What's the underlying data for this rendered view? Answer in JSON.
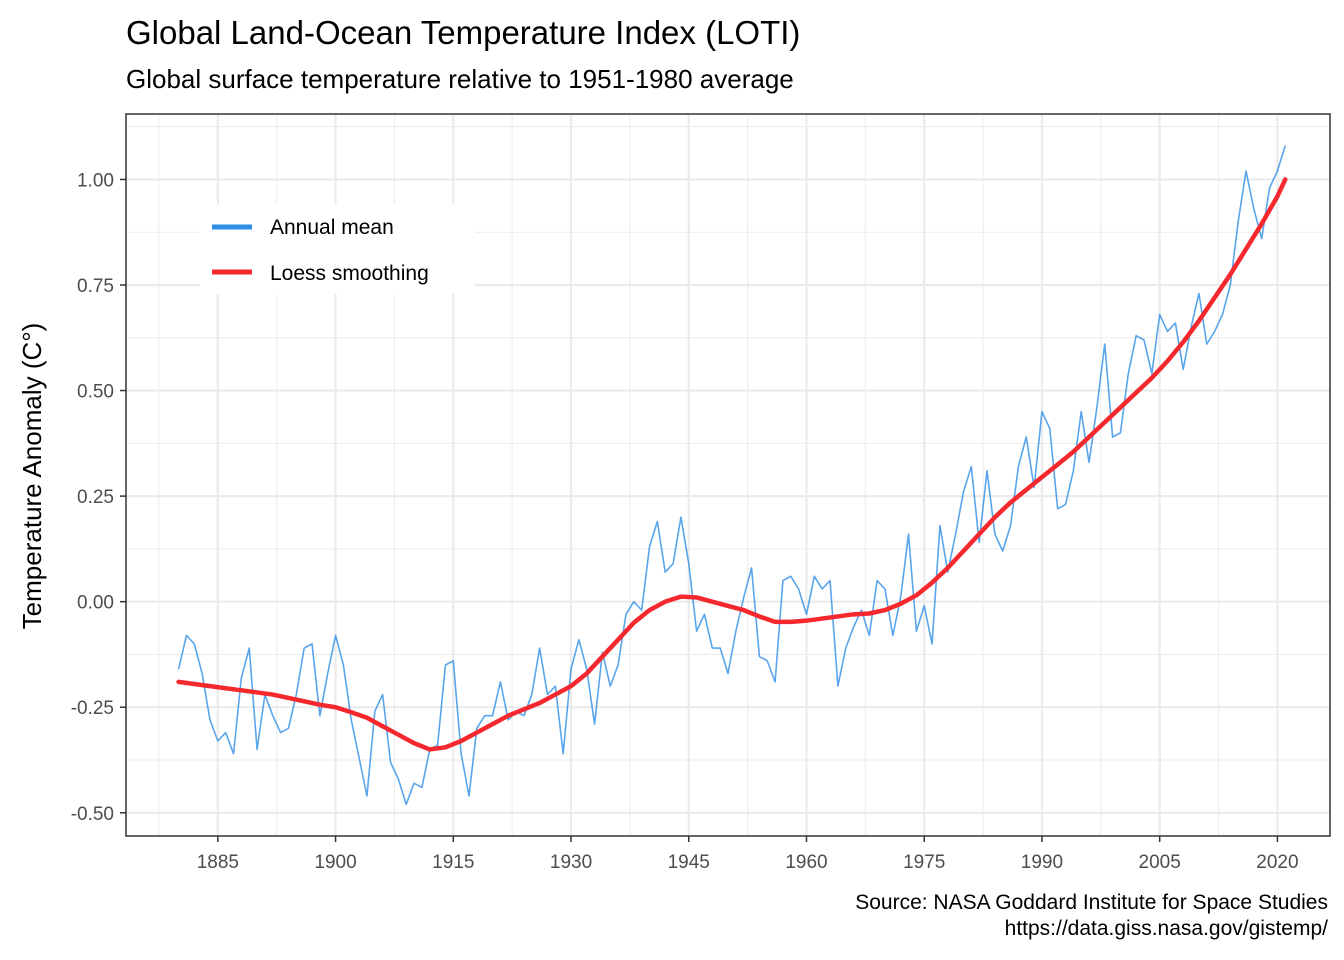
{
  "header": {
    "title": "Global Land-Ocean Temperature Index (LOTI)",
    "subtitle": "Global surface temperature relative to 1951-1980 average"
  },
  "caption": {
    "line1": "Source: NASA Goddard Institute for Space Studies",
    "line2": "https://data.giss.nasa.gov/gistemp/"
  },
  "colors": {
    "annual": "#2f8fe6",
    "smooth": "#f5282e",
    "grid": "#ebebeb",
    "panel_border": "#333333"
  },
  "chart_data": {
    "type": "line",
    "title": "Global Land-Ocean Temperature Index (LOTI)",
    "subtitle": "Global surface temperature relative to 1951-1980 average",
    "xlabel": "",
    "ylabel": "Temperature Anomaly (C°)",
    "xlim": [
      1873.3,
      1026.7
    ],
    "ylim": [
      -0.555,
      1.155
    ],
    "x_ticks": [
      1885,
      1900,
      1915,
      1930,
      1945,
      1960,
      1975,
      1990,
      2005,
      2020
    ],
    "x_tick_labels": [
      "1885",
      "1900",
      "1915",
      "1930",
      "1945",
      "1960",
      "1975",
      "1990",
      "2005",
      "2020"
    ],
    "y_ticks": [
      -0.5,
      -0.25,
      0,
      0.25,
      0.5,
      0.75,
      1.0
    ],
    "y_tick_labels": [
      "-0.50",
      "-0.25",
      "0.00",
      "0.25",
      "0.50",
      "0.75",
      "1.00"
    ],
    "grid": true,
    "legend_position": "top-left",
    "series": [
      {
        "name": "Annual mean",
        "x": [
          1880,
          1881,
          1882,
          1883,
          1884,
          1885,
          1886,
          1887,
          1888,
          1889,
          1890,
          1891,
          1892,
          1893,
          1894,
          1895,
          1896,
          1897,
          1898,
          1899,
          1900,
          1901,
          1902,
          1903,
          1904,
          1905,
          1906,
          1907,
          1908,
          1909,
          1910,
          1911,
          1912,
          1913,
          1914,
          1915,
          1916,
          1917,
          1918,
          1919,
          1920,
          1921,
          1922,
          1923,
          1924,
          1925,
          1926,
          1927,
          1928,
          1929,
          1930,
          1931,
          1932,
          1933,
          1934,
          1935,
          1936,
          1937,
          1938,
          1939,
          1940,
          1941,
          1942,
          1943,
          1944,
          1945,
          1946,
          1947,
          1948,
          1949,
          1950,
          1951,
          1952,
          1953,
          1954,
          1955,
          1956,
          1957,
          1958,
          1959,
          1960,
          1961,
          1962,
          1963,
          1964,
          1965,
          1966,
          1967,
          1968,
          1969,
          1970,
          1971,
          1972,
          1973,
          1974,
          1975,
          1976,
          1977,
          1978,
          1979,
          1980,
          1981,
          1982,
          1983,
          1984,
          1985,
          1986,
          1987,
          1988,
          1989,
          1990,
          1991,
          1992,
          1993,
          1994,
          1995,
          1996,
          1997,
          1998,
          1999,
          2000,
          2001,
          2002,
          2003,
          2004,
          2005,
          2006,
          2007,
          2008,
          2009,
          2010,
          2011,
          2012,
          2013,
          2014,
          2015,
          2016,
          2017,
          2018,
          2019,
          2020,
          2021
        ],
        "values": [
          -0.16,
          -0.08,
          -0.1,
          -0.17,
          -0.28,
          -0.33,
          -0.31,
          -0.36,
          -0.18,
          -0.11,
          -0.35,
          -0.22,
          -0.27,
          -0.31,
          -0.3,
          -0.22,
          -0.11,
          -0.1,
          -0.27,
          -0.17,
          -0.08,
          -0.15,
          -0.28,
          -0.37,
          -0.46,
          -0.26,
          -0.22,
          -0.38,
          -0.42,
          -0.48,
          -0.43,
          -0.44,
          -0.35,
          -0.34,
          -0.15,
          -0.14,
          -0.36,
          -0.46,
          -0.3,
          -0.27,
          -0.27,
          -0.19,
          -0.28,
          -0.26,
          -0.27,
          -0.22,
          -0.11,
          -0.22,
          -0.2,
          -0.36,
          -0.16,
          -0.09,
          -0.16,
          -0.29,
          -0.12,
          -0.2,
          -0.15,
          -0.03,
          0.0,
          -0.02,
          0.13,
          0.19,
          0.07,
          0.09,
          0.2,
          0.09,
          -0.07,
          -0.03,
          -0.11,
          -0.11,
          -0.17,
          -0.07,
          0.01,
          0.08,
          -0.13,
          -0.14,
          -0.19,
          0.05,
          0.06,
          0.03,
          -0.03,
          0.06,
          0.03,
          0.05,
          -0.2,
          -0.11,
          -0.06,
          -0.02,
          -0.08,
          0.05,
          0.03,
          -0.08,
          0.01,
          0.16,
          -0.07,
          -0.01,
          -0.1,
          0.18,
          0.07,
          0.16,
          0.26,
          0.32,
          0.14,
          0.31,
          0.16,
          0.12,
          0.18,
          0.32,
          0.39,
          0.27,
          0.45,
          0.41,
          0.22,
          0.23,
          0.31,
          0.45,
          0.33,
          0.46,
          0.61,
          0.39,
          0.4,
          0.54,
          0.63,
          0.62,
          0.54,
          0.68,
          0.64,
          0.66,
          0.55,
          0.65,
          0.73,
          0.61,
          0.64,
          0.68,
          0.75,
          0.9,
          1.02,
          0.93,
          0.86,
          0.98,
          1.02,
          1.08
        ]
      },
      {
        "name": "Loess smoothing",
        "x": [
          1880,
          1882,
          1884,
          1886,
          1888,
          1890,
          1892,
          1894,
          1896,
          1898,
          1900,
          1902,
          1904,
          1906,
          1908,
          1910,
          1912,
          1914,
          1916,
          1918,
          1920,
          1922,
          1924,
          1926,
          1928,
          1930,
          1932,
          1934,
          1936,
          1938,
          1940,
          1942,
          1944,
          1946,
          1948,
          1950,
          1952,
          1954,
          1956,
          1958,
          1960,
          1962,
          1964,
          1966,
          1968,
          1970,
          1972,
          1974,
          1976,
          1978,
          1980,
          1982,
          1984,
          1986,
          1988,
          1990,
          1992,
          1994,
          1996,
          1998,
          2000,
          2002,
          2004,
          2006,
          2008,
          2010,
          2012,
          2014,
          2016,
          2018,
          2020,
          2021
        ],
        "values": [
          -0.19,
          -0.195,
          -0.2,
          -0.205,
          -0.21,
          -0.215,
          -0.22,
          -0.228,
          -0.236,
          -0.244,
          -0.25,
          -0.262,
          -0.275,
          -0.295,
          -0.315,
          -0.335,
          -0.35,
          -0.345,
          -0.33,
          -0.31,
          -0.29,
          -0.27,
          -0.255,
          -0.24,
          -0.22,
          -0.2,
          -0.17,
          -0.13,
          -0.09,
          -0.05,
          -0.02,
          0.0,
          0.012,
          0.01,
          0.0,
          -0.01,
          -0.02,
          -0.035,
          -0.048,
          -0.048,
          -0.045,
          -0.04,
          -0.035,
          -0.03,
          -0.028,
          -0.02,
          -0.005,
          0.015,
          0.045,
          0.08,
          0.12,
          0.16,
          0.2,
          0.235,
          0.265,
          0.295,
          0.325,
          0.355,
          0.39,
          0.425,
          0.46,
          0.495,
          0.53,
          0.57,
          0.615,
          0.665,
          0.72,
          0.775,
          0.835,
          0.895,
          0.96,
          1.0
        ]
      }
    ]
  }
}
